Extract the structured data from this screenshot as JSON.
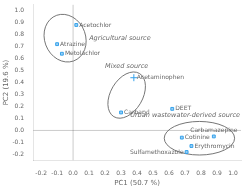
{
  "chart_data": {
    "type": "scatter",
    "xlabel": "PC1 (50.7 %)",
    "ylabel": "PC2 (19.6 %)",
    "xlim": [
      -0.25,
      1.05
    ],
    "ylim": [
      -0.25,
      1.05
    ],
    "xticks": [
      -0.2,
      -0.1,
      {
        "value": 0,
        "label": "0.0"
      },
      0.1,
      0.2,
      0.3,
      0.4,
      0.5,
      0.6,
      0.7,
      0.8,
      0.9,
      {
        "value": 1,
        "label": "1.0"
      }
    ],
    "yticks": [
      -0.2,
      -0.1,
      {
        "value": 0,
        "label": "0.0"
      },
      0.1,
      0.2,
      0.3,
      0.4,
      0.5,
      0.6,
      0.7,
      0.8,
      0.9,
      {
        "value": 1,
        "label": "1.0"
      }
    ],
    "points": [
      {
        "label": "Acetochlor",
        "x": 0.02,
        "y": 0.88,
        "marker": "square"
      },
      {
        "label": "Atrazine",
        "x": -0.1,
        "y": 0.72,
        "marker": "square"
      },
      {
        "label": "Metolachlor",
        "x": -0.07,
        "y": 0.64,
        "marker": "square"
      },
      {
        "label": "Acetaminophen",
        "x": 0.38,
        "y": 0.44,
        "marker": "plus"
      },
      {
        "label": "Carbaryl",
        "x": 0.3,
        "y": 0.15,
        "marker": "square"
      },
      {
        "label": "DEET",
        "x": 0.62,
        "y": 0.18,
        "marker": "square"
      },
      {
        "label": "Cotinine",
        "x": 0.68,
        "y": -0.06,
        "marker": "square"
      },
      {
        "label": "Carbamazepine",
        "x": 0.88,
        "y": -0.05,
        "marker": "square"
      },
      {
        "label": "Erythromycin",
        "x": 0.74,
        "y": -0.13,
        "marker": "square"
      },
      {
        "label": "Sulfamethoxazole",
        "x": 0.71,
        "y": -0.18,
        "marker": "square"
      }
    ],
    "ellipses": [
      {
        "label": "Agricultural source",
        "cx": -0.05,
        "cy": 0.77,
        "width": 0.26,
        "height": 0.4,
        "angle": 8
      },
      {
        "label": "Mixed source",
        "cx": 0.335,
        "cy": 0.295,
        "width": 0.21,
        "height": 0.4,
        "angle": -18
      },
      {
        "label": "Urban wastewater-derived source",
        "cx": 0.79,
        "cy": -0.065,
        "width": 0.44,
        "height": 0.28,
        "angle": 0
      }
    ],
    "hlines": [
      0
    ],
    "vlines": [
      0
    ],
    "grid": false
  }
}
